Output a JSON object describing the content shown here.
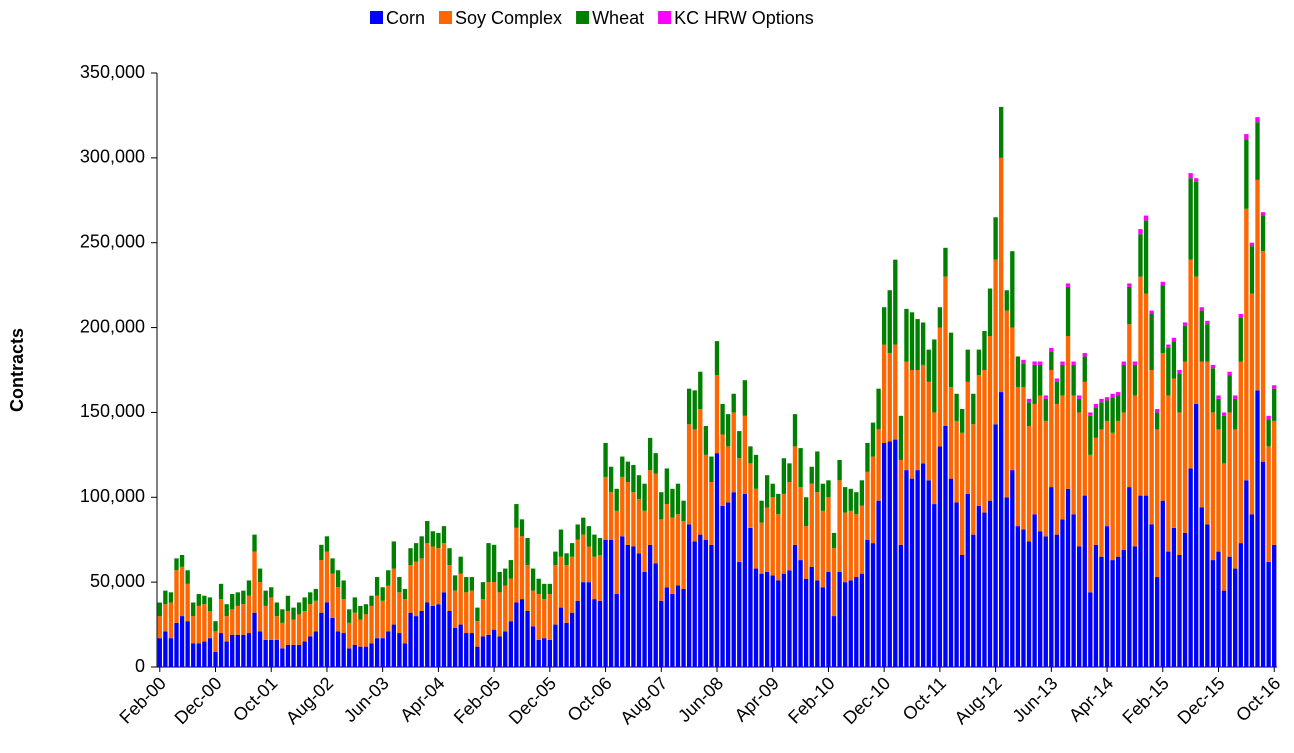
{
  "chart_data": {
    "type": "stacked_bar",
    "y_label": "Contracts",
    "categories": [
      "Feb-00",
      null,
      null,
      null,
      null,
      null,
      null,
      null,
      null,
      null,
      "Dec-00",
      null,
      null,
      null,
      null,
      null,
      null,
      null,
      null,
      null,
      "Oct-01",
      null,
      null,
      null,
      null,
      null,
      null,
      null,
      null,
      null,
      "Aug-02",
      null,
      null,
      null,
      null,
      null,
      null,
      null,
      null,
      null,
      "Jun-03",
      null,
      null,
      null,
      null,
      null,
      null,
      null,
      null,
      null,
      "Apr-04",
      null,
      null,
      null,
      null,
      null,
      null,
      null,
      null,
      null,
      "Feb-05",
      null,
      null,
      null,
      null,
      null,
      null,
      null,
      null,
      null,
      "Dec-05",
      null,
      null,
      null,
      null,
      null,
      null,
      null,
      null,
      null,
      "Oct-06",
      null,
      null,
      null,
      null,
      null,
      null,
      null,
      null,
      null,
      "Aug-07",
      null,
      null,
      null,
      null,
      null,
      null,
      null,
      null,
      null,
      "Jun-08",
      null,
      null,
      null,
      null,
      null,
      null,
      null,
      null,
      null,
      "Apr-09",
      null,
      null,
      null,
      null,
      null,
      null,
      null,
      null,
      null,
      "Feb-10",
      null,
      null,
      null,
      null,
      null,
      null,
      null,
      null,
      null,
      "Dec-10",
      null,
      null,
      null,
      null,
      null,
      null,
      null,
      null,
      null,
      "Oct-11",
      null,
      null,
      null,
      null,
      null,
      null,
      null,
      null,
      null,
      "Aug-12",
      null,
      null,
      null,
      null,
      null,
      null,
      null,
      null,
      null,
      "Jun-13",
      null,
      null,
      null,
      null,
      null,
      null,
      null,
      null,
      null,
      "Apr-14",
      null,
      null,
      null,
      null,
      null,
      null,
      null,
      null,
      null,
      "Feb-15",
      null,
      null,
      null,
      null,
      null,
      null,
      null,
      null,
      null,
      "Dec-15",
      null,
      null,
      null,
      null,
      null,
      null,
      null,
      null,
      null,
      "Oct-16"
    ],
    "series": [
      {
        "name": "Corn",
        "color": "#0000ff",
        "values": [
          17000,
          21000,
          17000,
          26000,
          30000,
          27000,
          14000,
          14000,
          15000,
          17000,
          9000,
          20000,
          15000,
          19000,
          19000,
          19000,
          20000,
          32000,
          21000,
          16000,
          16000,
          16000,
          11000,
          13000,
          13000,
          13000,
          15000,
          18000,
          21000,
          32000,
          38000,
          29000,
          21000,
          20000,
          11000,
          13000,
          12000,
          12000,
          14000,
          17000,
          17000,
          21000,
          25000,
          20000,
          14000,
          32000,
          30000,
          33000,
          38000,
          36000,
          37000,
          44000,
          33000,
          23000,
          25000,
          20000,
          20000,
          12000,
          18000,
          19000,
          22000,
          18000,
          21000,
          27000,
          38000,
          40000,
          33000,
          24000,
          16000,
          17000,
          16000,
          25000,
          35000,
          26000,
          32000,
          39000,
          50000,
          50000,
          40000,
          39000,
          75000,
          75000,
          43000,
          77000,
          72000,
          71000,
          67000,
          56000,
          72000,
          61000,
          39000,
          47000,
          43000,
          48000,
          46000,
          84000,
          74000,
          78000,
          75000,
          72000,
          126000,
          95000,
          97000,
          103000,
          62000,
          102000,
          82000,
          58000,
          55000,
          56000,
          54000,
          51000,
          55000,
          57000,
          72000,
          63000,
          52000,
          59000,
          51000,
          47000,
          56000,
          30000,
          56000,
          50000,
          51000,
          53000,
          55000,
          75000,
          73000,
          98000,
          132000,
          133000,
          134000,
          72000,
          116000,
          111000,
          116000,
          120000,
          110000,
          96000,
          130000,
          142000,
          111000,
          97000,
          66000,
          102000,
          78000,
          95000,
          91000,
          98000,
          143000,
          162000,
          100000,
          116000,
          83000,
          81000,
          74000,
          90000,
          80000,
          77000,
          106000,
          78000,
          87000,
          105000,
          90000,
          71000,
          101000,
          44000,
          72000,
          65000,
          83000,
          63000,
          65000,
          69000,
          106000,
          71000,
          101000,
          101000,
          84000,
          53000,
          98000,
          68000,
          82000,
          66000,
          79000,
          117000,
          155000,
          94000,
          84000,
          63000,
          68000,
          45000,
          65000,
          58000,
          73000,
          110000,
          90000,
          163000,
          121000,
          62000,
          72000
        ]
      },
      {
        "name": "Soy Complex",
        "color": "#ff6600",
        "values": [
          13000,
          16000,
          21000,
          31000,
          29000,
          22000,
          16000,
          22000,
          22000,
          16000,
          12000,
          20000,
          15000,
          15000,
          17000,
          18000,
          22000,
          36000,
          29000,
          20000,
          25000,
          14000,
          15000,
          20000,
          15000,
          18000,
          18000,
          19000,
          18000,
          31000,
          30000,
          26000,
          26000,
          20000,
          15000,
          19000,
          16000,
          19000,
          22000,
          25000,
          22000,
          27000,
          33000,
          24000,
          26000,
          28000,
          32000,
          31000,
          35000,
          35000,
          33000,
          29000,
          27000,
          22000,
          30000,
          24000,
          25000,
          15000,
          22000,
          31000,
          28000,
          26000,
          27000,
          25000,
          44000,
          37000,
          27000,
          21000,
          27000,
          23000,
          27000,
          35000,
          30000,
          34000,
          33000,
          36000,
          28000,
          21000,
          25000,
          27000,
          37000,
          28000,
          49000,
          35000,
          37000,
          32000,
          32000,
          36000,
          44000,
          53000,
          48000,
          49000,
          45000,
          42000,
          40000,
          59000,
          66000,
          74000,
          50000,
          37000,
          46000,
          42000,
          33000,
          47000,
          61000,
          46000,
          38000,
          47000,
          30000,
          38000,
          46000,
          39000,
          47000,
          52000,
          58000,
          43000,
          31000,
          49000,
          52000,
          45000,
          44000,
          40000,
          54000,
          41000,
          41000,
          37000,
          40000,
          40000,
          51000,
          42000,
          58000,
          52000,
          56000,
          50000,
          64000,
          64000,
          59000,
          58000,
          58000,
          54000,
          70000,
          88000,
          54000,
          48000,
          72000,
          66000,
          65000,
          77000,
          84000,
          97000,
          97000,
          138000,
          110000,
          84000,
          82000,
          84000,
          68000,
          65000,
          80000,
          68000,
          69000,
          77000,
          73000,
          90000,
          70000,
          79000,
          67000,
          81000,
          63000,
          75000,
          62000,
          75000,
          80000,
          81000,
          96000,
          89000,
          129000,
          119000,
          91000,
          87000,
          87000,
          92000,
          88000,
          84000,
          101000,
          123000,
          75000,
          86000,
          96000,
          87000,
          72000,
          75000,
          85000,
          82000,
          107000,
          160000,
          130000,
          124000,
          124000,
          68000,
          73000
        ]
      },
      {
        "name": "Wheat",
        "color": "#008000",
        "values": [
          8000,
          8000,
          6000,
          7000,
          7000,
          8000,
          8000,
          7000,
          5000,
          8000,
          6000,
          9000,
          7000,
          9000,
          8000,
          8000,
          9000,
          10000,
          8000,
          9000,
          6000,
          8000,
          8000,
          9000,
          7000,
          7000,
          8000,
          7000,
          7000,
          9000,
          9000,
          9000,
          10000,
          11000,
          8000,
          9000,
          8000,
          6000,
          6000,
          11000,
          8000,
          9000,
          16000,
          9000,
          6000,
          10000,
          11000,
          13000,
          13000,
          9000,
          9000,
          10000,
          10000,
          9000,
          10000,
          9000,
          8000,
          8000,
          10000,
          23000,
          22000,
          12000,
          10000,
          11000,
          14000,
          10000,
          16000,
          13000,
          9000,
          9000,
          6000,
          8000,
          16000,
          7000,
          8000,
          9000,
          10000,
          12000,
          13000,
          10000,
          20000,
          15000,
          13000,
          12000,
          12000,
          16000,
          14000,
          16000,
          19000,
          12000,
          16000,
          21000,
          17000,
          18000,
          12000,
          21000,
          23000,
          22000,
          17000,
          15000,
          20000,
          18000,
          19000,
          11000,
          16000,
          21000,
          10000,
          20000,
          13000,
          19000,
          8000,
          12000,
          21000,
          11000,
          19000,
          23000,
          17000,
          10000,
          24000,
          16000,
          10000,
          9000,
          12000,
          15000,
          13000,
          13000,
          15000,
          17000,
          20000,
          24000,
          22000,
          37000,
          50000,
          26000,
          31000,
          34000,
          30000,
          25000,
          19000,
          43000,
          12000,
          17000,
          32000,
          16000,
          14000,
          19000,
          18000,
          15000,
          23000,
          28000,
          25000,
          30000,
          12000,
          45000,
          18000,
          14000,
          14000,
          23000,
          18000,
          13000,
          11000,
          13000,
          18000,
          29000,
          18000,
          8000,
          15000,
          23000,
          18000,
          16000,
          12000,
          21000,
          15000,
          28000,
          22000,
          18000,
          25000,
          43000,
          33000,
          10000,
          40000,
          28000,
          22000,
          23000,
          21000,
          48000,
          56000,
          30000,
          22000,
          26000,
          18000,
          28000,
          22000,
          18000,
          26000,
          41000,
          28000,
          34000,
          21000,
          16000,
          19000
        ]
      },
      {
        "name": "KC HRW Options",
        "color": "#ff00ff",
        "values": [
          0,
          0,
          0,
          0,
          0,
          0,
          0,
          0,
          0,
          0,
          0,
          0,
          0,
          0,
          0,
          0,
          0,
          0,
          0,
          0,
          0,
          0,
          0,
          0,
          0,
          0,
          0,
          0,
          0,
          0,
          0,
          0,
          0,
          0,
          0,
          0,
          0,
          0,
          0,
          0,
          0,
          0,
          0,
          0,
          0,
          0,
          0,
          0,
          0,
          0,
          0,
          0,
          0,
          0,
          0,
          0,
          0,
          0,
          0,
          0,
          0,
          0,
          0,
          0,
          0,
          0,
          0,
          0,
          0,
          0,
          0,
          0,
          0,
          0,
          0,
          0,
          0,
          0,
          0,
          0,
          0,
          0,
          0,
          0,
          0,
          0,
          0,
          0,
          0,
          0,
          0,
          0,
          0,
          0,
          0,
          0,
          0,
          0,
          0,
          0,
          0,
          0,
          0,
          0,
          0,
          0,
          0,
          0,
          0,
          0,
          0,
          0,
          0,
          0,
          0,
          0,
          0,
          0,
          0,
          0,
          0,
          0,
          0,
          0,
          0,
          0,
          0,
          0,
          0,
          0,
          0,
          0,
          0,
          0,
          0,
          0,
          0,
          0,
          0,
          0,
          0,
          0,
          0,
          0,
          0,
          0,
          0,
          0,
          0,
          0,
          0,
          0,
          0,
          0,
          0,
          2000,
          2000,
          2000,
          2000,
          2000,
          2000,
          2000,
          2000,
          2000,
          2000,
          2000,
          2000,
          2000,
          2000,
          2000,
          2000,
          2000,
          2000,
          2000,
          2000,
          2000,
          3000,
          3000,
          2000,
          2000,
          2000,
          2000,
          2000,
          2000,
          2000,
          3000,
          2000,
          2000,
          2000,
          2000,
          2000,
          2000,
          2000,
          2000,
          2000,
          3000,
          2000,
          3000,
          2000,
          2000,
          2000
        ]
      }
    ],
    "ylim": [
      0,
      350000
    ],
    "yticks": [
      0,
      {
        "value": 50000,
        "label": "50,000"
      },
      {
        "value": 100000,
        "label": "100,000"
      },
      {
        "value": 150000,
        "label": "150,000"
      },
      {
        "value": 200000,
        "label": "200,000"
      },
      {
        "value": 250000,
        "label": "250,000"
      },
      {
        "value": 300000,
        "label": "300,000"
      },
      {
        "value": 350000,
        "label": "350,000"
      }
    ],
    "grid": false,
    "legend": "top"
  }
}
